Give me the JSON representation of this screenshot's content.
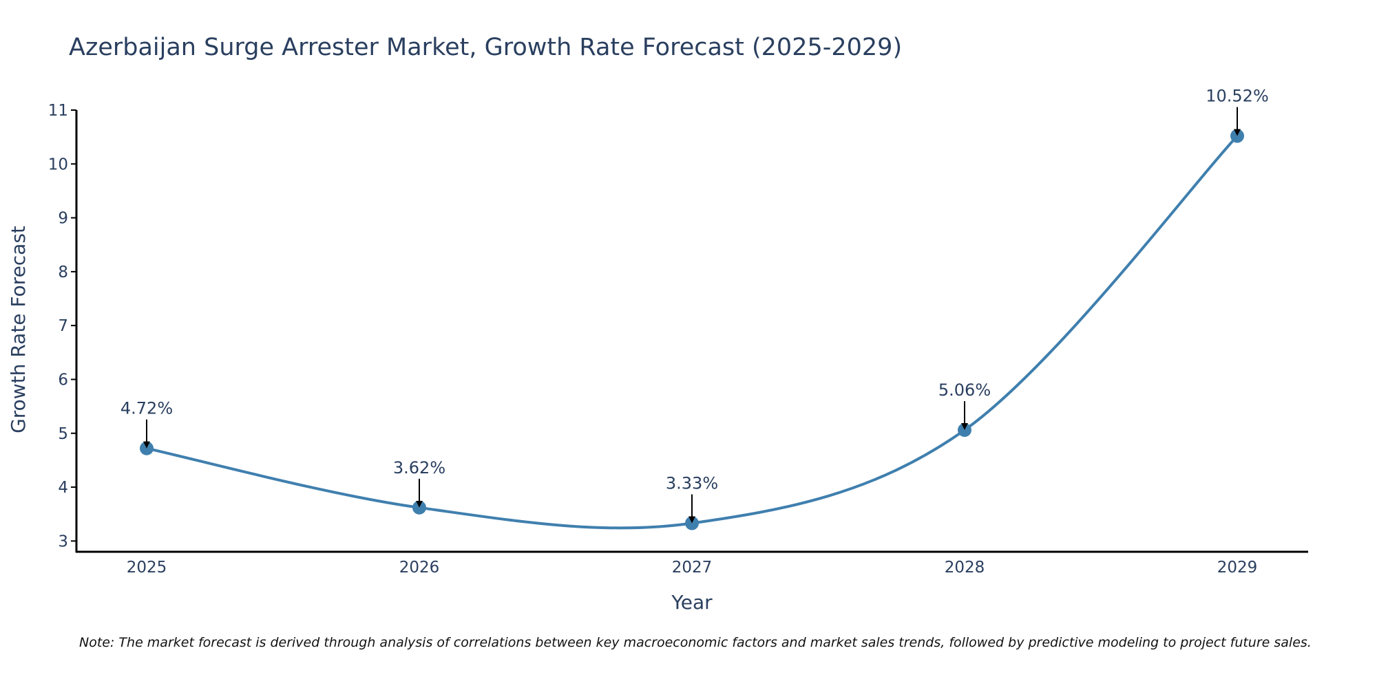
{
  "chart_data": {
    "type": "line",
    "title": "Azerbaijan Surge Arrester Market, Growth Rate Forecast (2025-2029)",
    "xlabel": "Year",
    "ylabel": "Growth Rate Forecast",
    "categories": [
      "2025",
      "2026",
      "2027",
      "2028",
      "2029"
    ],
    "values": [
      4.72,
      3.62,
      3.33,
      5.06,
      10.52
    ],
    "data_labels": [
      "4.72%",
      "3.62%",
      "3.33%",
      "5.06%",
      "10.52%"
    ],
    "ylim": [
      2.8,
      11
    ],
    "yticks": [
      3,
      4,
      5,
      6,
      7,
      8,
      9,
      10,
      11
    ],
    "ytick_labels": [
      "3",
      "4",
      "5",
      "6",
      "7",
      "8",
      "9",
      "10",
      "11"
    ],
    "grid": false,
    "line_shape": "spline",
    "markers": true,
    "series_color": "#3f7fae",
    "marker_color": "#3f7fae",
    "axis_color": "#000000",
    "text_color": "#2a3f5f",
    "note": "Note: The market forecast is derived through analysis of correlations between key macroeconomic factors and market sales trends, followed by predictive modeling to project future sales."
  }
}
